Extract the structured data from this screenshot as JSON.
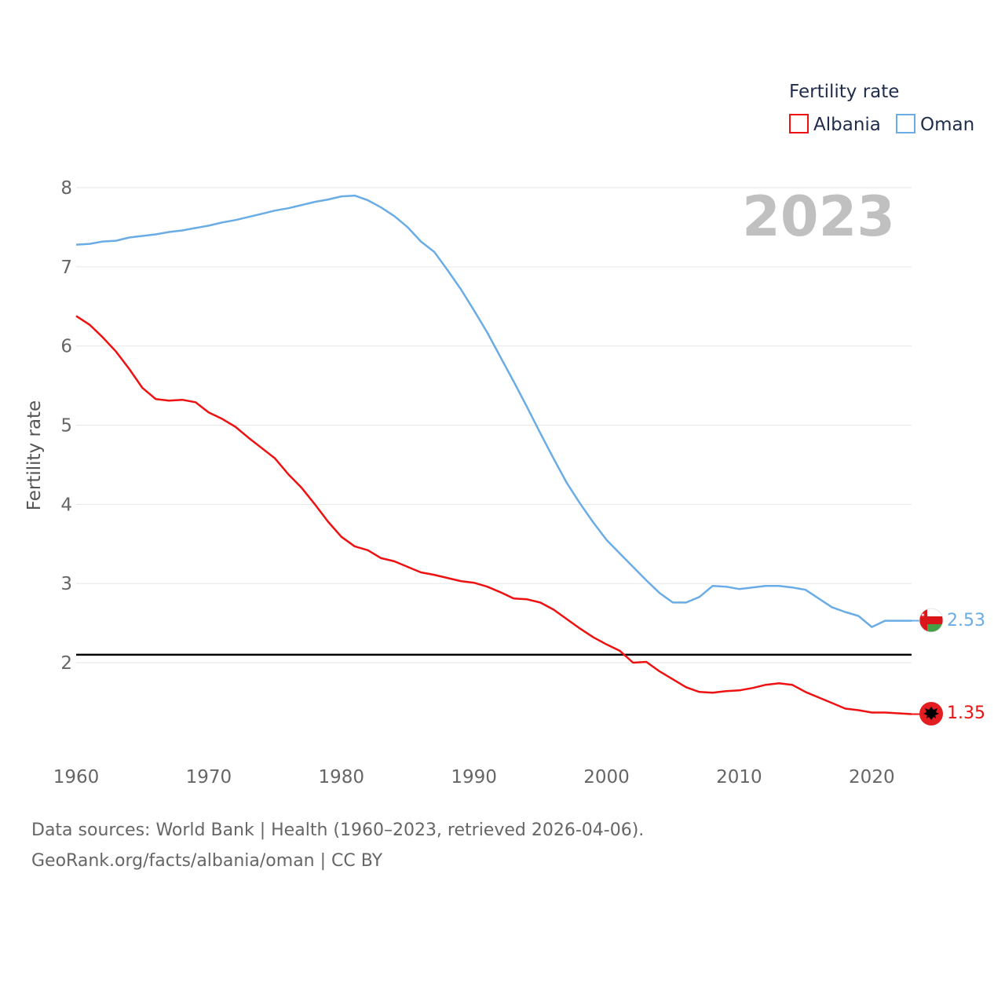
{
  "chart_data": {
    "type": "line",
    "title": "2023",
    "ylabel": "Fertility rate",
    "xlabel": "",
    "xlim": [
      1960,
      2023
    ],
    "ylim": [
      1,
      8.3
    ],
    "x_ticks": [
      1960,
      1970,
      1980,
      1990,
      2000,
      2010,
      2020
    ],
    "y_ticks": [
      2,
      3,
      4,
      5,
      6,
      7,
      8
    ],
    "reference_line": 2.1,
    "legend": {
      "title": "Fertility rate",
      "position": "top-right"
    },
    "x": [
      1960,
      1961,
      1962,
      1963,
      1964,
      1965,
      1966,
      1967,
      1968,
      1969,
      1970,
      1971,
      1972,
      1973,
      1974,
      1975,
      1976,
      1977,
      1978,
      1979,
      1980,
      1981,
      1982,
      1983,
      1984,
      1985,
      1986,
      1987,
      1988,
      1989,
      1990,
      1991,
      1992,
      1993,
      1994,
      1995,
      1996,
      1997,
      1998,
      1999,
      2000,
      2001,
      2002,
      2003,
      2004,
      2005,
      2006,
      2007,
      2008,
      2009,
      2010,
      2011,
      2012,
      2013,
      2014,
      2015,
      2016,
      2017,
      2018,
      2019,
      2020,
      2021,
      2022,
      2023
    ],
    "series": [
      {
        "name": "Albania",
        "color": "#ee1111",
        "end_label": "1.35",
        "values": [
          6.38,
          6.27,
          6.11,
          5.93,
          5.71,
          5.47,
          5.33,
          5.31,
          5.32,
          5.29,
          5.16,
          5.08,
          4.98,
          4.84,
          4.71,
          4.58,
          4.38,
          4.21,
          4.0,
          3.78,
          3.59,
          3.47,
          3.42,
          3.32,
          3.28,
          3.21,
          3.14,
          3.11,
          3.07,
          3.03,
          3.01,
          2.96,
          2.89,
          2.81,
          2.8,
          2.76,
          2.67,
          2.55,
          2.43,
          2.32,
          2.23,
          2.15,
          2.0,
          2.01,
          1.89,
          1.79,
          1.69,
          1.63,
          1.62,
          1.64,
          1.65,
          1.68,
          1.72,
          1.74,
          1.72,
          1.63,
          1.56,
          1.49,
          1.42,
          1.4,
          1.37,
          1.37,
          1.36,
          1.35
        ]
      },
      {
        "name": "Oman",
        "color": "#6aace6",
        "end_label": "2.53",
        "values": [
          7.28,
          7.29,
          7.32,
          7.33,
          7.37,
          7.39,
          7.41,
          7.44,
          7.46,
          7.49,
          7.52,
          7.56,
          7.59,
          7.63,
          7.67,
          7.71,
          7.74,
          7.78,
          7.82,
          7.85,
          7.89,
          7.9,
          7.84,
          7.75,
          7.64,
          7.5,
          7.32,
          7.19,
          6.96,
          6.72,
          6.45,
          6.17,
          5.86,
          5.55,
          5.23,
          4.9,
          4.58,
          4.27,
          4.01,
          3.77,
          3.55,
          3.38,
          3.21,
          3.04,
          2.88,
          2.76,
          2.76,
          2.83,
          2.97,
          2.96,
          2.93,
          2.95,
          2.97,
          2.97,
          2.95,
          2.92,
          2.81,
          2.7,
          2.64,
          2.59,
          2.45,
          2.53,
          2.53,
          2.53
        ]
      }
    ]
  },
  "footer": {
    "line1": "Data sources: World Bank | Health (1960–2023, retrieved 2026-04-06).",
    "line2": "GeoRank.org/facts/albania/oman | CC BY"
  }
}
